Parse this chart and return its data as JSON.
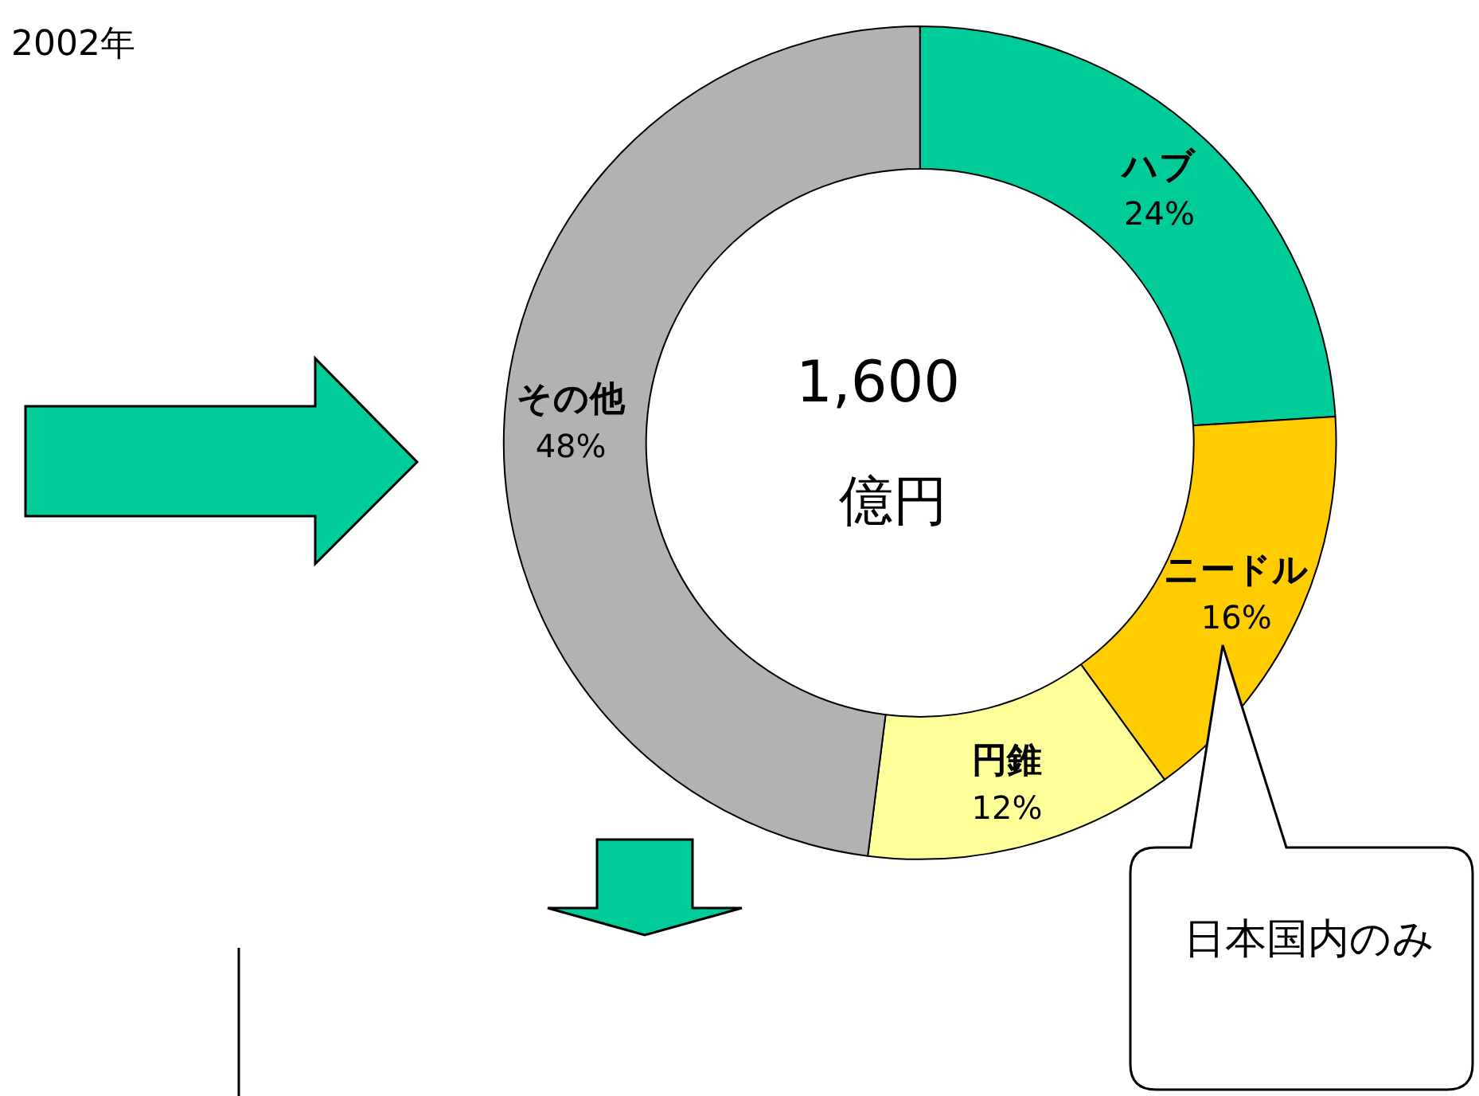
{
  "chart_data": {
    "type": "donut",
    "title": "2002年",
    "categories": [
      "ハブ",
      "ニードル",
      "円錐",
      "その他"
    ],
    "values": [
      24,
      16,
      12,
      48
    ],
    "colors": [
      "#00cc99",
      "#ffcc00",
      "#ffff99",
      "#b2b2b2"
    ],
    "value_labels": [
      "24%",
      "16%",
      "12%",
      "48%"
    ],
    "legend": false,
    "annotations": [
      "1,600",
      "億円",
      "日本国内のみ"
    ]
  }
}
